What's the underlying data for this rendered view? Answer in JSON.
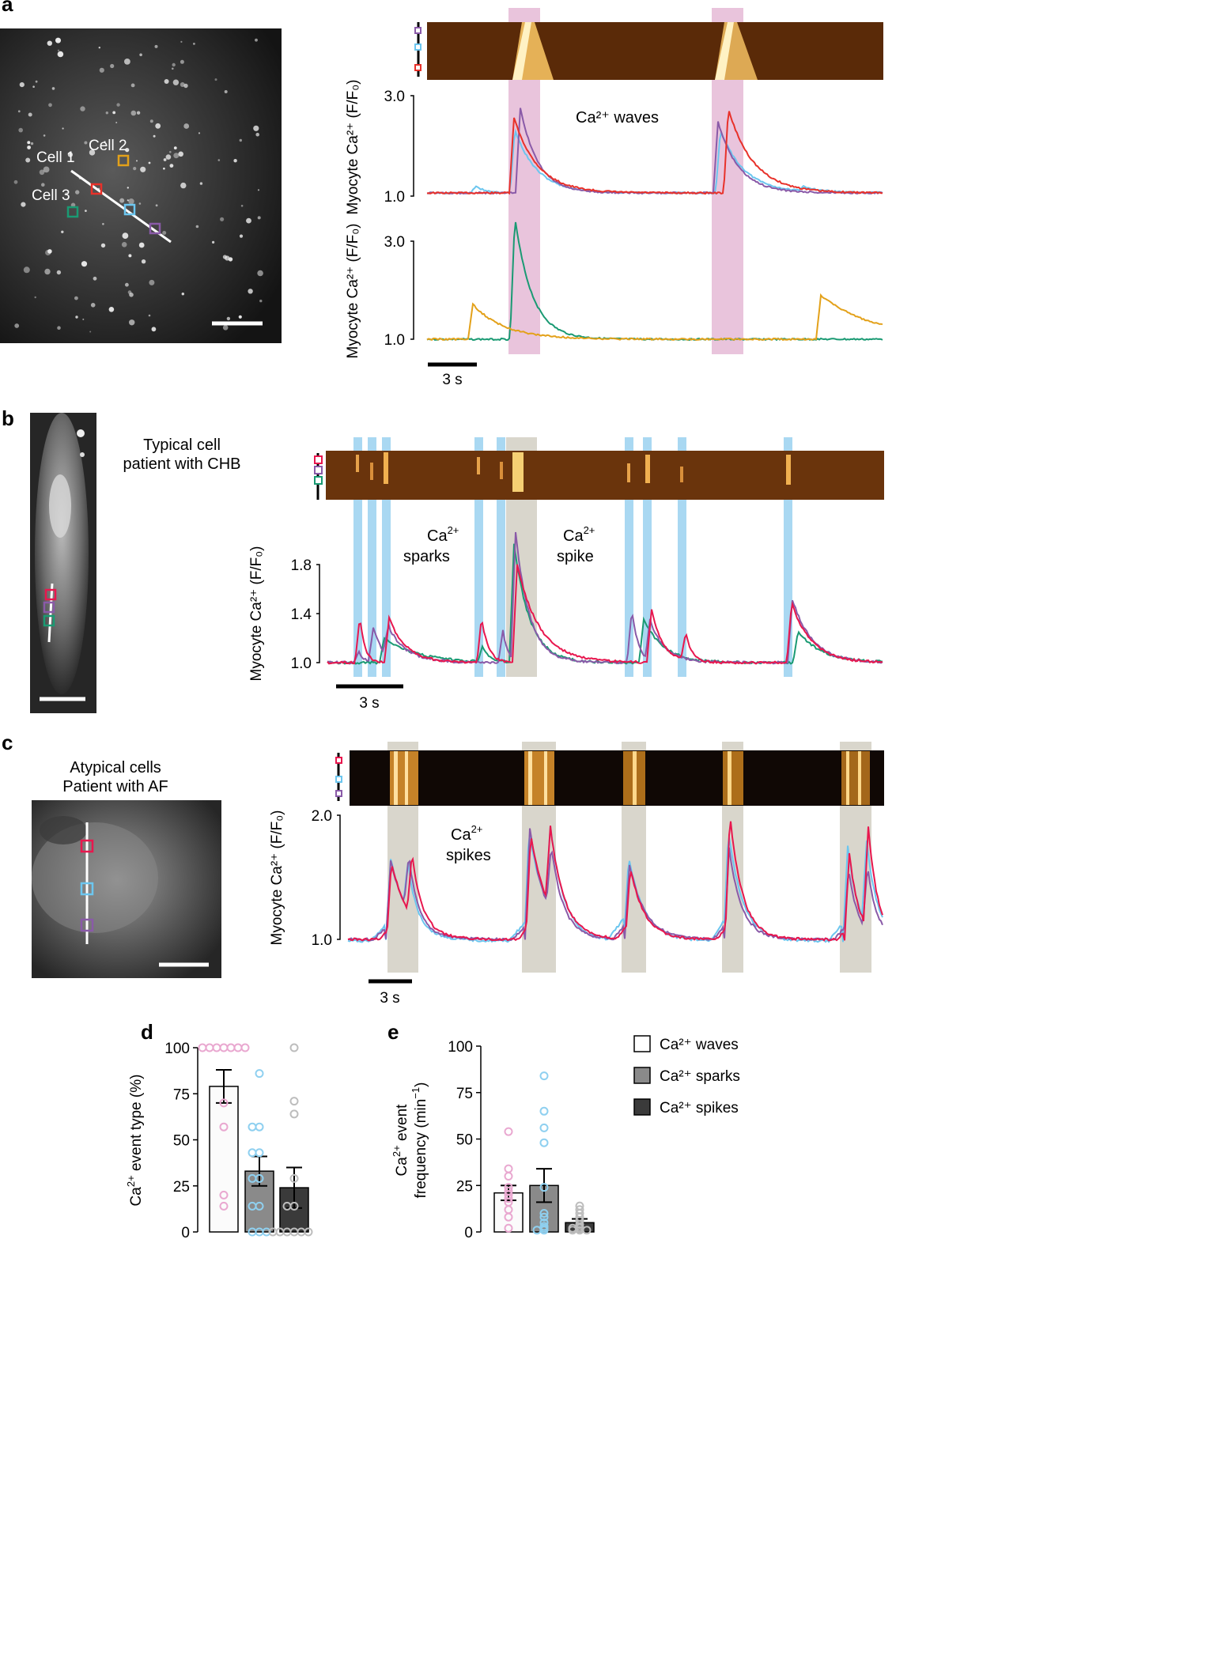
{
  "panels": {
    "a": "a",
    "b": "b",
    "c": "c",
    "d": "d",
    "e": "e"
  },
  "colors": {
    "red": "#e8312a",
    "crimson": "#e8174e",
    "blue": "#6cc6ef",
    "purple": "#8a5aa8",
    "green": "#1a9a73",
    "orange": "#e3a11a",
    "pink_band": "#e9c4dc",
    "blue_band": "#a9d8f2",
    "gray_band": "#d9d6cc",
    "kymo": "#5a2a08"
  },
  "icons": {
    "roi_box": "square-roi-icon",
    "line_scan": "scan-line-icon"
  },
  "panel_a": {
    "cell_labels": [
      "Cell 1",
      "Cell 2",
      "Cell 3"
    ],
    "ylabel": "Myocyte Ca²⁺ (F/F₀)",
    "y_top": "3.0",
    "y_bottom": "1.0",
    "annotation": "Ca²⁺ waves",
    "scale": "3 s"
  },
  "panel_b": {
    "caption_line1": "Typical cell",
    "caption_line2": "patient with CHB",
    "ylabel": "Myocyte Ca²⁺ (F/F₀)",
    "ticks": [
      "1.8",
      "1.4",
      "1.0"
    ],
    "annotation_sparks": "Ca²⁺ sparks",
    "annotation_spike": "Ca²⁺ spike",
    "scale": "3 s"
  },
  "panel_c": {
    "caption_line1": "Atypical cells",
    "caption_line2": "Patient with AF",
    "ylabel": "Myocyte Ca²⁺ (F/F₀)",
    "ticks": [
      "2.0",
      "1.0"
    ],
    "annotation": "Ca²⁺ spikes",
    "scale": "3 s"
  },
  "chart_data": [
    {
      "panel": "d",
      "type": "bar",
      "ylabel": "Ca²⁺ event type (%)",
      "ylim": [
        0,
        100
      ],
      "yticks": [
        "0",
        "25",
        "50",
        "75",
        "100"
      ],
      "categories": [
        "Ca²⁺ waves",
        "Ca²⁺ sparks",
        "Ca²⁺ spikes"
      ],
      "values": [
        79,
        33,
        24
      ],
      "errors": [
        9,
        8,
        11
      ],
      "points": [
        [
          100,
          100,
          100,
          100,
          100,
          100,
          100,
          70,
          57,
          20,
          14
        ],
        [
          86,
          57,
          57,
          43,
          43,
          29,
          29,
          14,
          14,
          0,
          0,
          0
        ],
        [
          100,
          71,
          64,
          29,
          14,
          14,
          0,
          0,
          0,
          0,
          0,
          0
        ]
      ]
    },
    {
      "panel": "e",
      "type": "bar",
      "ylabel": "Ca²⁺ event frequency (min⁻¹)",
      "ylim": [
        0,
        100
      ],
      "yticks": [
        "0",
        "25",
        "50",
        "75",
        "100"
      ],
      "categories": [
        "Ca²⁺ waves",
        "Ca²⁺ sparks",
        "Ca²⁺ spikes"
      ],
      "values": [
        21,
        25,
        5
      ],
      "errors": [
        4,
        9,
        2
      ],
      "points": [
        [
          54,
          34,
          30,
          24,
          22,
          20,
          18,
          16,
          12,
          8,
          2
        ],
        [
          84,
          65,
          56,
          48,
          24,
          10,
          8,
          5,
          3,
          2,
          1,
          1
        ],
        [
          14,
          12,
          10,
          8,
          6,
          4,
          3,
          2,
          2,
          1,
          1,
          1
        ]
      ]
    }
  ],
  "legend": [
    "Ca²⁺ waves",
    "Ca²⁺ sparks",
    "Ca²⁺ spikes"
  ]
}
